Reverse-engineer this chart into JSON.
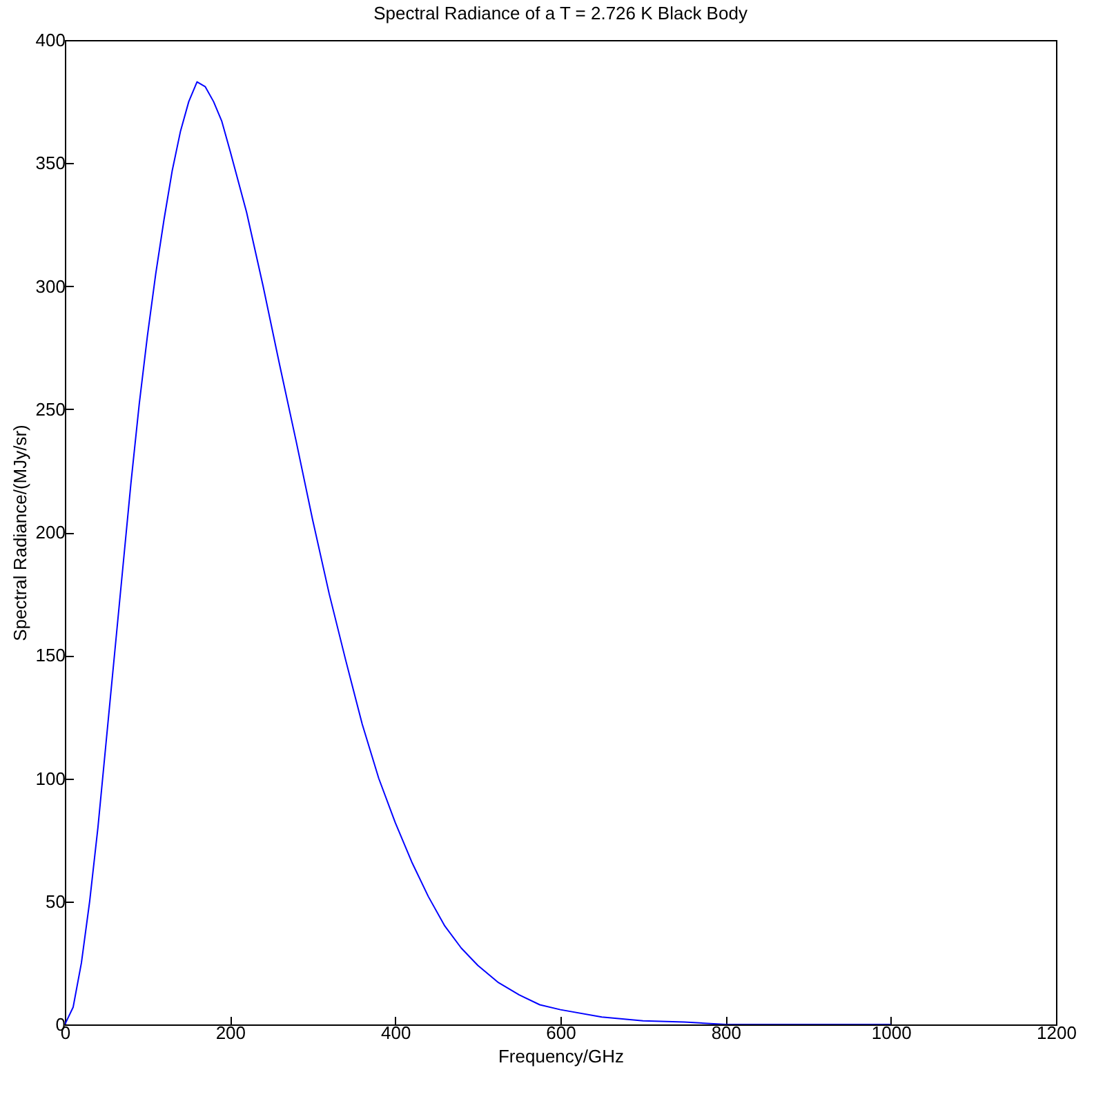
{
  "chart_data": {
    "type": "line",
    "title": "Spectral Radiance of a T = 2.726 K Black Body",
    "xlabel": "Frequency/GHz",
    "ylabel": "Spectral Radiance/(MJy/sr)",
    "x": [
      0,
      10,
      20,
      30,
      40,
      50,
      60,
      70,
      80,
      90,
      100,
      110,
      120,
      130,
      140,
      150,
      160,
      170,
      180,
      190,
      200,
      220,
      240,
      260,
      280,
      300,
      320,
      340,
      360,
      380,
      400,
      420,
      440,
      460,
      480,
      500,
      525,
      550,
      575,
      600,
      650,
      700,
      750,
      800,
      900,
      1000
    ],
    "series": [
      {
        "color": "#0000ff",
        "values": [
          0,
          7,
          25,
          50,
          80,
          115,
          150,
          185,
          220,
          252,
          280,
          305,
          327,
          347,
          363,
          375,
          383,
          381,
          375,
          367,
          355,
          330,
          300,
          268,
          237,
          205,
          175,
          148,
          122,
          100,
          82,
          66,
          52,
          40,
          31,
          24,
          17,
          12,
          8,
          6,
          3,
          1.5,
          1,
          0,
          0,
          0
        ]
      }
    ],
    "xlim": [
      0,
      1200
    ],
    "xticks": [
      0,
      200,
      400,
      600,
      800,
      1000,
      1200
    ],
    "ylim": [
      0,
      400
    ],
    "yticks": [
      0,
      50,
      100,
      150,
      200,
      250,
      300,
      350,
      400
    ],
    "grid": false
  }
}
